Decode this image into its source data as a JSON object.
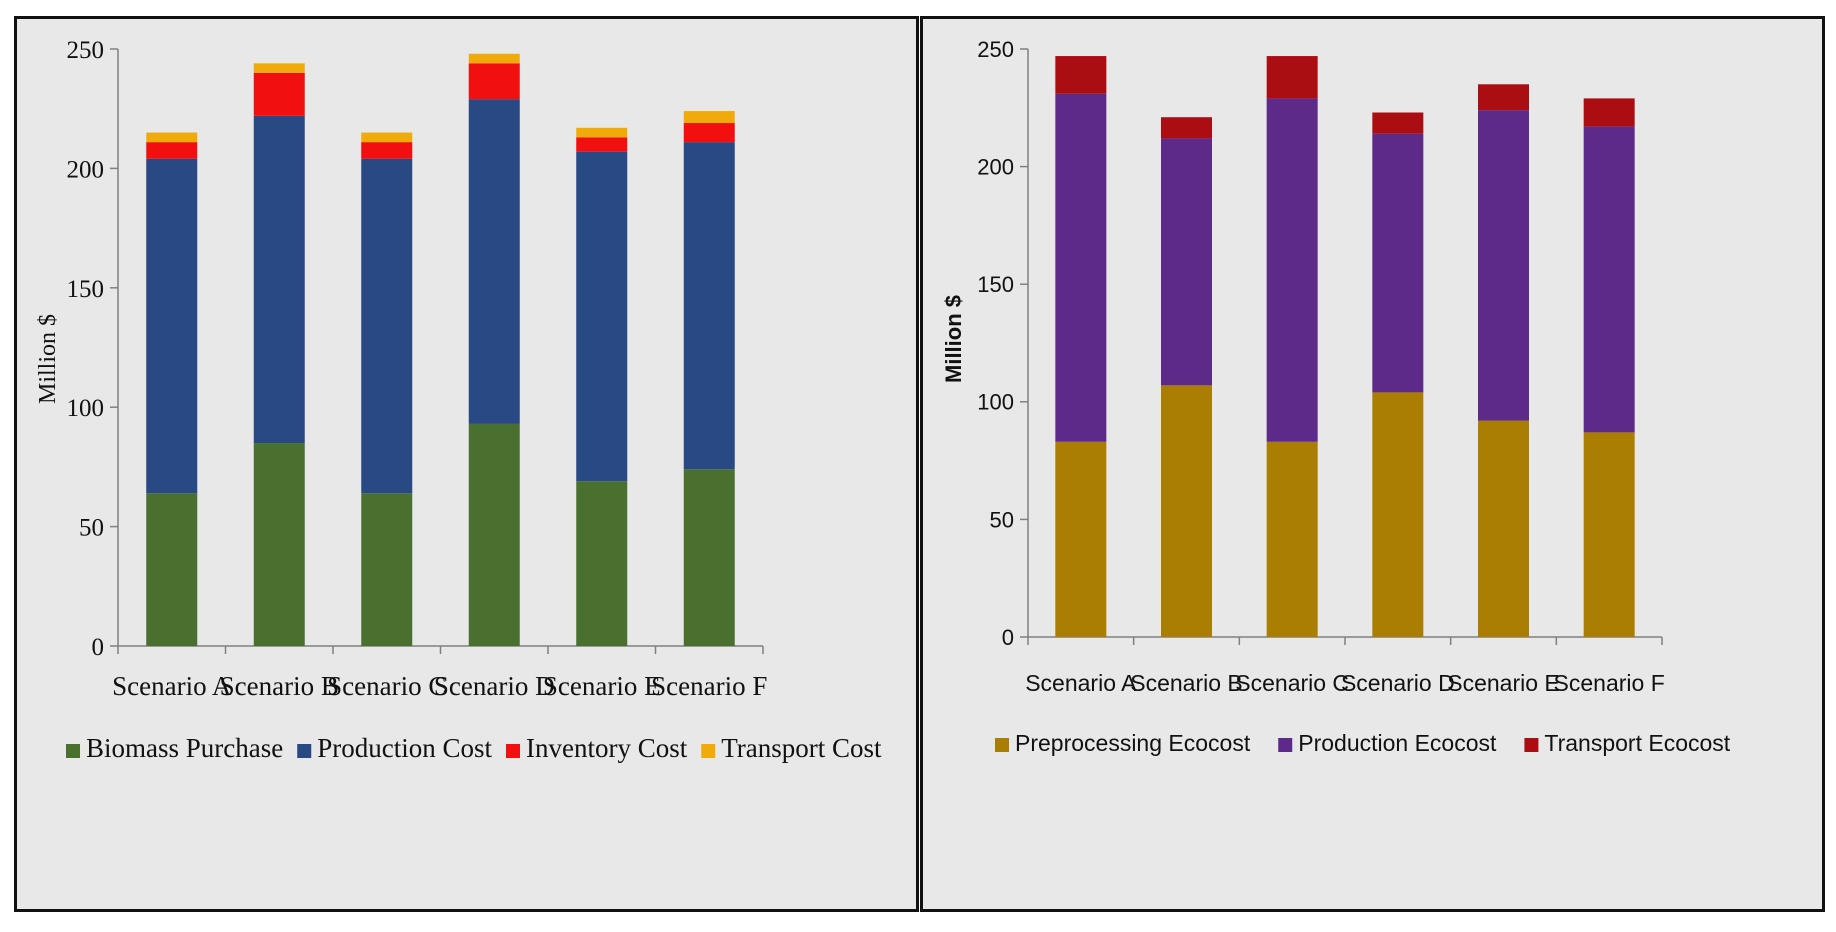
{
  "chart_data": [
    {
      "type": "bar",
      "stacked": true,
      "title": "",
      "xlabel": "",
      "ylabel": "Million $",
      "ylim": [
        0,
        250
      ],
      "yticks": [
        "0",
        "50",
        "100",
        "150",
        "200",
        "250"
      ],
      "categories": [
        "Scenario A",
        "Scenario B",
        "Scenario C",
        "Scenario D",
        "Scenario E",
        "Scenario F"
      ],
      "series": [
        {
          "name": "Biomass Purchase",
          "color": "#4a7030",
          "values": [
            64,
            85,
            64,
            93,
            69,
            74
          ]
        },
        {
          "name": "Production Cost",
          "color": "#284983",
          "values": [
            140,
            137,
            140,
            136,
            138,
            137
          ]
        },
        {
          "name": "Inventory Cost",
          "color": "#f20f0f",
          "values": [
            7,
            18,
            7,
            15,
            6,
            8
          ]
        },
        {
          "name": "Transport Cost",
          "color": "#f0ab0b",
          "values": [
            4,
            4,
            4,
            4,
            4,
            5
          ]
        }
      ],
      "grid": false,
      "legend_position": "bottom"
    },
    {
      "type": "bar",
      "stacked": true,
      "title": "",
      "xlabel": "",
      "ylabel": "Million $",
      "ylim": [
        0,
        250
      ],
      "yticks": [
        "0",
        "50",
        "100",
        "150",
        "200",
        "250"
      ],
      "categories": [
        "Scenario A",
        "Scenario B",
        "Scenario C",
        "Scenario D",
        "Scenario E",
        "Scenario F"
      ],
      "series": [
        {
          "name": "Preprocessing Ecocost",
          "color": "#aa7d03",
          "values": [
            83,
            107,
            83,
            104,
            92,
            87
          ]
        },
        {
          "name": "Production Ecocost",
          "color": "#5d2a8a",
          "values": [
            148,
            105,
            146,
            110,
            132,
            130
          ]
        },
        {
          "name": "Transport Ecocost",
          "color": "#ab0e12",
          "values": [
            16,
            9,
            18,
            9,
            11,
            12
          ]
        }
      ],
      "grid": false,
      "legend_position": "bottom"
    }
  ]
}
